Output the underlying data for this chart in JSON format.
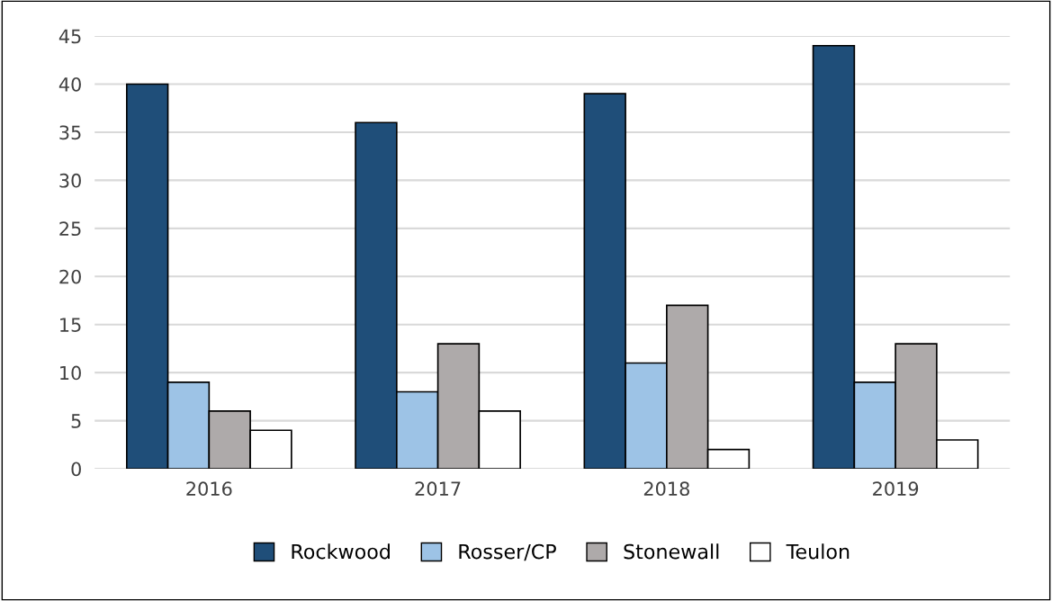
{
  "chart_data": {
    "type": "bar",
    "categories": [
      "2016",
      "2017",
      "2018",
      "2019"
    ],
    "series": [
      {
        "name": "Rockwood",
        "color": "#1f4e79",
        "values": [
          40,
          36,
          39,
          44
        ]
      },
      {
        "name": "Rosser/CP",
        "color": "#9dc3e6",
        "values": [
          9,
          8,
          11,
          9
        ]
      },
      {
        "name": "Stonewall",
        "color": "#aeaaaa",
        "values": [
          6,
          13,
          17,
          13
        ]
      },
      {
        "name": "Teulon",
        "color": "#ffffff",
        "values": [
          4,
          6,
          2,
          3
        ]
      }
    ],
    "ylim": [
      0,
      45
    ],
    "yticks": [
      0,
      5,
      10,
      15,
      20,
      25,
      30,
      35,
      40,
      45
    ],
    "grid": "y",
    "legend": "bottom"
  }
}
